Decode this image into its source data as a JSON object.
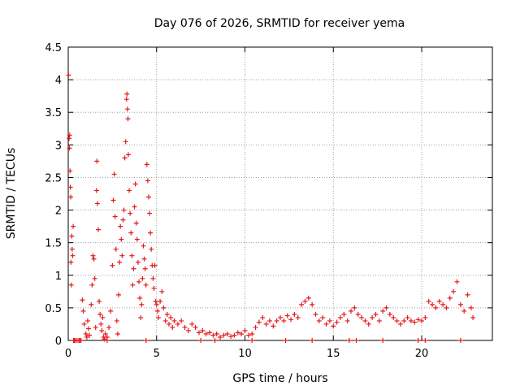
{
  "chart_data": {
    "type": "scatter",
    "title": "Day 076 of 2026, SRMTID for receiver yema",
    "xlabel": "GPS time / hours",
    "ylabel": "SRMTID / TECUs",
    "xlim": [
      0,
      24
    ],
    "ylim": [
      0,
      4.5
    ],
    "xticks": [
      0,
      5,
      10,
      15,
      20
    ],
    "xtick_labels": [
      "0",
      "5",
      "10",
      "15",
      "20"
    ],
    "yticks": [
      0,
      0.5,
      1,
      1.5,
      2,
      2.5,
      3,
      3.5,
      4,
      4.5
    ],
    "ytick_labels": [
      "0",
      "0.5",
      "1",
      "1.5",
      "2",
      "2.5",
      "3",
      "3.5",
      "4",
      "4.5"
    ],
    "grid": true,
    "marker": "+",
    "series": [
      {
        "name": "SRMTID",
        "color": "#e41a1c",
        "points": [
          [
            0.02,
            4.07
          ],
          [
            0.05,
            3.1
          ],
          [
            0.07,
            2.95
          ],
          [
            0.08,
            3.15
          ],
          [
            0.1,
            2.6
          ],
          [
            0.12,
            2.35
          ],
          [
            0.14,
            2.2
          ],
          [
            0.15,
            1.2
          ],
          [
            0.17,
            0.85
          ],
          [
            0.2,
            1.6
          ],
          [
            0.22,
            1.4
          ],
          [
            0.25,
            1.3
          ],
          [
            0.28,
            1.75
          ],
          [
            0.3,
            0.0
          ],
          [
            0.35,
            0.0
          ],
          [
            0.4,
            0.0
          ],
          [
            0.5,
            0.0
          ],
          [
            0.6,
            0.0
          ],
          [
            0.65,
            0.0
          ],
          [
            0.72,
            0.0
          ],
          [
            0.8,
            0.62
          ],
          [
            0.85,
            0.45
          ],
          [
            0.9,
            0.25
          ],
          [
            1.0,
            0.1
          ],
          [
            1.05,
            0.05
          ],
          [
            1.1,
            0.3
          ],
          [
            1.15,
            0.18
          ],
          [
            1.2,
            0.08
          ],
          [
            1.3,
            0.55
          ],
          [
            1.35,
            0.85
          ],
          [
            1.4,
            1.3
          ],
          [
            1.45,
            1.25
          ],
          [
            1.5,
            0.95
          ],
          [
            1.55,
            0.2
          ],
          [
            1.6,
            2.3
          ],
          [
            1.62,
            2.75
          ],
          [
            1.65,
            2.1
          ],
          [
            1.7,
            1.7
          ],
          [
            1.75,
            0.6
          ],
          [
            1.8,
            0.4
          ],
          [
            1.85,
            0.25
          ],
          [
            1.9,
            0.15
          ],
          [
            1.95,
            0.35
          ],
          [
            2.0,
            0.05
          ],
          [
            2.05,
            0.02
          ],
          [
            2.1,
            0.1
          ],
          [
            2.2,
            0.05
          ],
          [
            2.3,
            0.2
          ],
          [
            2.4,
            0.45
          ],
          [
            2.5,
            1.15
          ],
          [
            2.55,
            2.15
          ],
          [
            2.6,
            2.55
          ],
          [
            2.65,
            1.9
          ],
          [
            2.7,
            1.4
          ],
          [
            2.75,
            0.3
          ],
          [
            2.8,
            0.1
          ],
          [
            2.85,
            0.7
          ],
          [
            2.9,
            1.2
          ],
          [
            2.95,
            1.75
          ],
          [
            3.0,
            1.55
          ],
          [
            3.05,
            1.3
          ],
          [
            3.1,
            1.85
          ],
          [
            3.15,
            2.0
          ],
          [
            3.2,
            2.8
          ],
          [
            3.25,
            3.05
          ],
          [
            3.3,
            3.7
          ],
          [
            3.32,
            3.78
          ],
          [
            3.35,
            3.55
          ],
          [
            3.38,
            3.4
          ],
          [
            3.4,
            2.85
          ],
          [
            3.45,
            2.3
          ],
          [
            3.5,
            1.95
          ],
          [
            3.55,
            1.65
          ],
          [
            3.6,
            1.3
          ],
          [
            3.65,
            0.85
          ],
          [
            3.7,
            1.1
          ],
          [
            3.75,
            2.05
          ],
          [
            3.8,
            2.4
          ],
          [
            3.85,
            1.8
          ],
          [
            3.9,
            1.55
          ],
          [
            3.95,
            1.2
          ],
          [
            4.0,
            0.9
          ],
          [
            4.05,
            0.65
          ],
          [
            4.1,
            0.35
          ],
          [
            4.15,
            0.55
          ],
          [
            4.2,
            0.95
          ],
          [
            4.25,
            1.45
          ],
          [
            4.3,
            1.25
          ],
          [
            4.35,
            1.1
          ],
          [
            4.4,
            0.85
          ],
          [
            4.45,
            2.7
          ],
          [
            4.5,
            2.45
          ],
          [
            4.55,
            2.2
          ],
          [
            4.6,
            1.95
          ],
          [
            4.65,
            1.65
          ],
          [
            4.7,
            1.4
          ],
          [
            4.75,
            1.15
          ],
          [
            4.8,
            0.95
          ],
          [
            4.85,
            0.8
          ],
          [
            4.9,
            1.15
          ],
          [
            4.95,
            0.6
          ],
          [
            5.0,
            0.55
          ],
          [
            5.05,
            0.45
          ],
          [
            5.1,
            0.35
          ],
          [
            5.2,
            0.6
          ],
          [
            5.3,
            0.75
          ],
          [
            5.4,
            0.5
          ],
          [
            5.5,
            0.3
          ],
          [
            5.6,
            0.4
          ],
          [
            5.7,
            0.25
          ],
          [
            5.8,
            0.35
          ],
          [
            5.9,
            0.2
          ],
          [
            6.0,
            0.3
          ],
          [
            6.2,
            0.25
          ],
          [
            6.4,
            0.3
          ],
          [
            6.6,
            0.2
          ],
          [
            6.8,
            0.15
          ],
          [
            7.0,
            0.25
          ],
          [
            7.2,
            0.2
          ],
          [
            7.4,
            0.12
          ],
          [
            7.6,
            0.15
          ],
          [
            7.8,
            0.1
          ],
          [
            8.0,
            0.12
          ],
          [
            8.2,
            0.08
          ],
          [
            8.4,
            0.1
          ],
          [
            8.6,
            0.05
          ],
          [
            8.8,
            0.08
          ],
          [
            9.0,
            0.1
          ],
          [
            9.2,
            0.06
          ],
          [
            9.4,
            0.08
          ],
          [
            9.6,
            0.12
          ],
          [
            9.8,
            0.1
          ],
          [
            10.0,
            0.15
          ],
          [
            10.2,
            0.08
          ],
          [
            10.4,
            0.1
          ],
          [
            10.6,
            0.2
          ],
          [
            10.8,
            0.28
          ],
          [
            11.0,
            0.35
          ],
          [
            11.2,
            0.25
          ],
          [
            11.4,
            0.3
          ],
          [
            11.6,
            0.22
          ],
          [
            11.8,
            0.3
          ],
          [
            12.0,
            0.35
          ],
          [
            12.2,
            0.3
          ],
          [
            12.4,
            0.38
          ],
          [
            12.6,
            0.32
          ],
          [
            12.8,
            0.4
          ],
          [
            13.0,
            0.35
          ],
          [
            13.2,
            0.55
          ],
          [
            13.4,
            0.6
          ],
          [
            13.6,
            0.65
          ],
          [
            13.8,
            0.55
          ],
          [
            14.0,
            0.4
          ],
          [
            14.2,
            0.3
          ],
          [
            14.4,
            0.35
          ],
          [
            14.6,
            0.25
          ],
          [
            14.8,
            0.3
          ],
          [
            15.0,
            0.22
          ],
          [
            15.2,
            0.28
          ],
          [
            15.4,
            0.35
          ],
          [
            15.6,
            0.4
          ],
          [
            15.8,
            0.3
          ],
          [
            16.0,
            0.45
          ],
          [
            16.2,
            0.5
          ],
          [
            16.4,
            0.4
          ],
          [
            16.6,
            0.35
          ],
          [
            16.8,
            0.3
          ],
          [
            17.0,
            0.25
          ],
          [
            17.2,
            0.35
          ],
          [
            17.4,
            0.4
          ],
          [
            17.6,
            0.3
          ],
          [
            17.8,
            0.45
          ],
          [
            18.0,
            0.5
          ],
          [
            18.2,
            0.4
          ],
          [
            18.4,
            0.35
          ],
          [
            18.6,
            0.3
          ],
          [
            18.8,
            0.25
          ],
          [
            19.0,
            0.3
          ],
          [
            19.2,
            0.35
          ],
          [
            19.4,
            0.3
          ],
          [
            19.6,
            0.28
          ],
          [
            19.8,
            0.32
          ],
          [
            20.0,
            0.3
          ],
          [
            20.2,
            0.35
          ],
          [
            20.4,
            0.6
          ],
          [
            20.6,
            0.55
          ],
          [
            20.8,
            0.5
          ],
          [
            21.0,
            0.6
          ],
          [
            21.2,
            0.55
          ],
          [
            21.4,
            0.5
          ],
          [
            21.6,
            0.65
          ],
          [
            21.8,
            0.75
          ],
          [
            22.0,
            0.9
          ],
          [
            22.2,
            0.55
          ],
          [
            22.4,
            0.45
          ],
          [
            22.6,
            0.7
          ],
          [
            22.8,
            0.5
          ],
          [
            22.9,
            0.35
          ],
          [
            2.2,
            0.0
          ],
          [
            4.4,
            0.0
          ],
          [
            7.5,
            0.0
          ],
          [
            8.3,
            0.0
          ],
          [
            10.4,
            0.0
          ],
          [
            12.3,
            0.0
          ],
          [
            13.8,
            0.0
          ],
          [
            15.9,
            0.0
          ],
          [
            16.3,
            0.0
          ],
          [
            17.8,
            0.0
          ],
          [
            19.8,
            0.0
          ],
          [
            20.2,
            0.0
          ],
          [
            22.2,
            0.0
          ]
        ]
      }
    ]
  }
}
